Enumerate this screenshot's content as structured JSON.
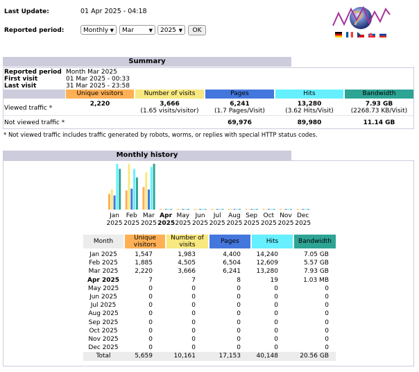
{
  "header": {
    "last_update_label": "Last Update:",
    "last_update_value": "01 Apr 2025 - 04:18",
    "period_label": "Reported period:",
    "period_type": "Monthly",
    "month": "Mar",
    "year": "2025",
    "ok_label": "OK"
  },
  "flags": [
    "de",
    "fr",
    "cz",
    "sk",
    "ru"
  ],
  "colors": {
    "unique": "#ffb055",
    "visits": "#f8e880",
    "pages": "#4477dd",
    "hits": "#66f0ff",
    "bandwidth": "#2ea495",
    "section": "#ccccdd",
    "row_header": "#ececec"
  },
  "summary": {
    "title": "Summary",
    "reported_period_label": "Reported period",
    "reported_period_value": "Month Mar 2025",
    "first_visit_label": "First visit",
    "first_visit_value": "01 Mar 2025 - 00:33",
    "last_visit_label": "Last visit",
    "last_visit_value": "31 Mar 2025 - 23:58",
    "columns": {
      "unique": "Unique visitors",
      "visits": "Number of visits",
      "pages": "Pages",
      "hits": "Hits",
      "bandwidth": "Bandwidth"
    },
    "viewed_label": "Viewed traffic *",
    "viewed": {
      "unique": "2,220",
      "visits": "3,666",
      "visits_sub": "(1.65 visits/visitor)",
      "pages": "6,241",
      "pages_sub": "(1.7 Pages/Visit)",
      "hits": "13,280",
      "hits_sub": "(3.62 Hits/Visit)",
      "bandwidth": "7.93 GB",
      "bandwidth_sub": "(2268.73 KB/Visit)"
    },
    "not_viewed_label": "Not viewed traffic *",
    "not_viewed": {
      "pages": "69,976",
      "hits": "89,980",
      "bandwidth": "11.14 GB"
    },
    "footnote": "* Not viewed traffic includes traffic generated by robots, worms, or replies with special HTTP status codes."
  },
  "history": {
    "title": "Monthly history",
    "columns": {
      "month": "Month",
      "unique": "Unique visitors",
      "visits": "Number of visits",
      "pages": "Pages",
      "hits": "Hits",
      "bandwidth": "Bandwidth"
    },
    "rows": [
      {
        "month": "Jan 2025",
        "unique": "1,547",
        "visits": "1,983",
        "pages": "4,400",
        "hits": "14,240",
        "bandwidth": "7.05 GB",
        "current": false
      },
      {
        "month": "Feb 2025",
        "unique": "1,885",
        "visits": "4,505",
        "pages": "6,504",
        "hits": "12,609",
        "bandwidth": "5.57 GB",
        "current": false
      },
      {
        "month": "Mar 2025",
        "unique": "2,220",
        "visits": "3,666",
        "pages": "6,241",
        "hits": "13,280",
        "bandwidth": "7.93 GB",
        "current": false
      },
      {
        "month": "Apr 2025",
        "unique": "7",
        "visits": "7",
        "pages": "8",
        "hits": "19",
        "bandwidth": "1.03 MB",
        "current": true
      },
      {
        "month": "May 2025",
        "unique": "0",
        "visits": "0",
        "pages": "0",
        "hits": "0",
        "bandwidth": "0",
        "current": false
      },
      {
        "month": "Jun 2025",
        "unique": "0",
        "visits": "0",
        "pages": "0",
        "hits": "0",
        "bandwidth": "0",
        "current": false
      },
      {
        "month": "Jul 2025",
        "unique": "0",
        "visits": "0",
        "pages": "0",
        "hits": "0",
        "bandwidth": "0",
        "current": false
      },
      {
        "month": "Aug 2025",
        "unique": "0",
        "visits": "0",
        "pages": "0",
        "hits": "0",
        "bandwidth": "0",
        "current": false
      },
      {
        "month": "Sep 2025",
        "unique": "0",
        "visits": "0",
        "pages": "0",
        "hits": "0",
        "bandwidth": "0",
        "current": false
      },
      {
        "month": "Oct 2025",
        "unique": "0",
        "visits": "0",
        "pages": "0",
        "hits": "0",
        "bandwidth": "0",
        "current": false
      },
      {
        "month": "Nov 2025",
        "unique": "0",
        "visits": "0",
        "pages": "0",
        "hits": "0",
        "bandwidth": "0",
        "current": false
      },
      {
        "month": "Dec 2025",
        "unique": "0",
        "visits": "0",
        "pages": "0",
        "hits": "0",
        "bandwidth": "0",
        "current": false
      }
    ],
    "total": {
      "label": "Total",
      "unique": "5,659",
      "visits": "10,161",
      "pages": "17,153",
      "hits": "40,148",
      "bandwidth": "20.56 GB"
    }
  },
  "chart_data": {
    "type": "bar",
    "title": "Monthly history",
    "categories": [
      "Jan 2025",
      "Feb 2025",
      "Mar 2025",
      "Apr 2025",
      "May 2025",
      "Jun 2025",
      "Jul 2025",
      "Aug 2025",
      "Sep 2025",
      "Oct 2025",
      "Nov 2025",
      "Dec 2025"
    ],
    "series": [
      {
        "name": "Unique visitors",
        "values": [
          1547,
          1885,
          2220,
          7,
          0,
          0,
          0,
          0,
          0,
          0,
          0,
          0
        ]
      },
      {
        "name": "Number of visits",
        "values": [
          1983,
          4505,
          3666,
          7,
          0,
          0,
          0,
          0,
          0,
          0,
          0,
          0
        ]
      },
      {
        "name": "Pages",
        "values": [
          4400,
          6504,
          6241,
          8,
          0,
          0,
          0,
          0,
          0,
          0,
          0,
          0
        ]
      },
      {
        "name": "Hits",
        "values": [
          14240,
          12609,
          13280,
          19,
          0,
          0,
          0,
          0,
          0,
          0,
          0,
          0
        ]
      },
      {
        "name": "Bandwidth (GB)",
        "values": [
          7.05,
          5.57,
          7.93,
          0.001,
          0,
          0,
          0,
          0,
          0,
          0,
          0,
          0
        ]
      }
    ],
    "xlabel": "",
    "ylabel": ""
  }
}
